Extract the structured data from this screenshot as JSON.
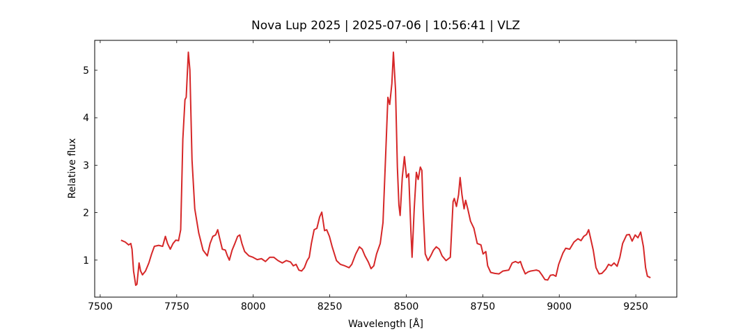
{
  "chart_data": {
    "type": "line",
    "title": "Nova Lup 2025 | 2025-07-06 | 10:56:41 | VLZ",
    "x_label": "Wavelength [Å]",
    "y_label": "Relative flux",
    "xlim": [
      7482,
      9384
    ],
    "ylim": [
      0.22,
      5.63
    ],
    "xticks": [
      7500,
      7750,
      8000,
      8250,
      8500,
      8750,
      9000,
      9250
    ],
    "yticks": [
      1,
      2,
      3,
      4,
      5
    ],
    "x": [
      7568,
      7582,
      7593,
      7600,
      7604,
      7609,
      7616,
      7620,
      7627,
      7632,
      7638,
      7648,
      7659,
      7668,
      7677,
      7691,
      7704,
      7713,
      7720,
      7729,
      7738,
      7747,
      7756,
      7763,
      7770,
      7777,
      7781,
      7788,
      7793,
      7800,
      7809,
      7822,
      7836,
      7850,
      7859,
      7868,
      7877,
      7884,
      7890,
      7899,
      7909,
      7915,
      7922,
      7931,
      7940,
      7949,
      7956,
      7963,
      7972,
      7986,
      7999,
      8013,
      8027,
      8040,
      8054,
      8067,
      8081,
      8095,
      8108,
      8122,
      8131,
      8140,
      8149,
      8158,
      8167,
      8176,
      8183,
      8190,
      8199,
      8208,
      8217,
      8224,
      8233,
      8240,
      8249,
      8258,
      8272,
      8285,
      8299,
      8313,
      8322,
      8335,
      8347,
      8356,
      8365,
      8376,
      8385,
      8394,
      8403,
      8415,
      8424,
      8433,
      8440,
      8446,
      8453,
      8458,
      8465,
      8471,
      8476,
      8480,
      8487,
      8494,
      8501,
      8508,
      8515,
      8519,
      8526,
      8533,
      8539,
      8546,
      8551,
      8555,
      8562,
      8571,
      8580,
      8589,
      8598,
      8608,
      8617,
      8630,
      8644,
      8653,
      8657,
      8664,
      8671,
      8676,
      8682,
      8689,
      8694,
      8701,
      8710,
      8721,
      8732,
      8744,
      8751,
      8760,
      8766,
      8776,
      8789,
      8803,
      8816,
      8835,
      8846,
      8857,
      8866,
      8873,
      8880,
      8889,
      8898,
      8907,
      8916,
      8925,
      8934,
      8943,
      8953,
      8962,
      8971,
      8980,
      8989,
      8998,
      9012,
      9021,
      9034,
      9048,
      9061,
      9071,
      9080,
      9089,
      9096,
      9102,
      9111,
      9120,
      9130,
      9139,
      9152,
      9161,
      9170,
      9179,
      9189,
      9198,
      9207,
      9220,
      9229,
      9238,
      9248,
      9257,
      9266,
      9275,
      9282,
      9288,
      9298
    ],
    "series": [
      {
        "color": "#d62728",
        "values": [
          1.42,
          1.38,
          1.32,
          1.35,
          1.23,
          0.77,
          0.47,
          0.49,
          0.94,
          0.77,
          0.69,
          0.77,
          0.94,
          1.13,
          1.29,
          1.31,
          1.29,
          1.5,
          1.35,
          1.23,
          1.35,
          1.42,
          1.41,
          1.64,
          3.55,
          4.38,
          4.43,
          5.38,
          5.01,
          3.11,
          2.08,
          1.57,
          1.21,
          1.09,
          1.35,
          1.5,
          1.53,
          1.64,
          1.47,
          1.23,
          1.21,
          1.1,
          1.0,
          1.21,
          1.35,
          1.5,
          1.53,
          1.35,
          1.18,
          1.09,
          1.06,
          1.01,
          1.03,
          0.97,
          1.06,
          1.06,
          0.99,
          0.94,
          0.99,
          0.96,
          0.88,
          0.91,
          0.79,
          0.77,
          0.84,
          0.99,
          1.06,
          1.35,
          1.64,
          1.67,
          1.91,
          2.01,
          1.62,
          1.64,
          1.5,
          1.28,
          0.99,
          0.91,
          0.88,
          0.84,
          0.91,
          1.13,
          1.28,
          1.23,
          1.09,
          0.96,
          0.82,
          0.88,
          1.13,
          1.35,
          1.79,
          3.26,
          4.43,
          4.28,
          4.72,
          5.38,
          4.58,
          2.96,
          2.16,
          1.94,
          2.74,
          3.18,
          2.74,
          2.82,
          1.64,
          1.06,
          2.08,
          2.85,
          2.7,
          2.96,
          2.89,
          2.08,
          1.13,
          0.99,
          1.09,
          1.21,
          1.28,
          1.23,
          1.09,
          0.99,
          1.06,
          2.23,
          2.3,
          2.13,
          2.38,
          2.74,
          2.38,
          2.08,
          2.26,
          2.08,
          1.82,
          1.67,
          1.35,
          1.32,
          1.13,
          1.18,
          0.88,
          0.74,
          0.72,
          0.71,
          0.77,
          0.79,
          0.94,
          0.97,
          0.94,
          0.97,
          0.84,
          0.71,
          0.75,
          0.77,
          0.78,
          0.79,
          0.77,
          0.69,
          0.59,
          0.58,
          0.68,
          0.69,
          0.66,
          0.91,
          1.15,
          1.25,
          1.23,
          1.38,
          1.45,
          1.41,
          1.5,
          1.54,
          1.64,
          1.47,
          1.21,
          0.84,
          0.71,
          0.72,
          0.81,
          0.91,
          0.88,
          0.94,
          0.87,
          1.06,
          1.35,
          1.53,
          1.54,
          1.4,
          1.53,
          1.47,
          1.59,
          1.28,
          0.84,
          0.66,
          0.63
        ]
      }
    ]
  }
}
